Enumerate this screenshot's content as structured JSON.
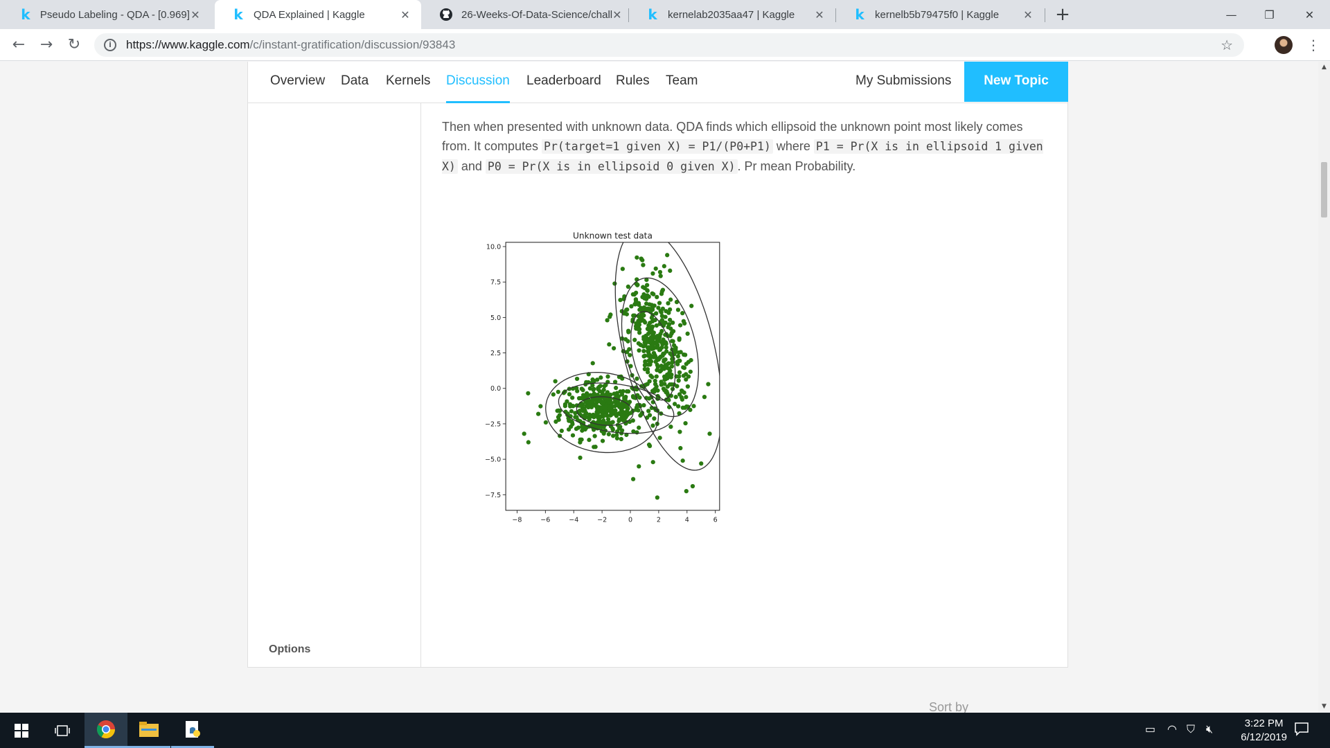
{
  "browser": {
    "tabs": [
      {
        "title": "Pseudo Labeling - QDA - [0.969]",
        "icon": "kaggle-icon"
      },
      {
        "title": "QDA Explained | Kaggle",
        "icon": "kaggle-icon",
        "active": true
      },
      {
        "title": "26-Weeks-Of-Data-Science/chall",
        "icon": "github-icon"
      },
      {
        "title": "kernelab2035aa47 | Kaggle",
        "icon": "kaggle-icon"
      },
      {
        "title": "kernelb5b79475f0 | Kaggle",
        "icon": "kaggle-icon"
      }
    ],
    "url_host": "https://www.kaggle.com",
    "url_path": "/c/instant-gratification/discussion/93843"
  },
  "competition_nav": {
    "tabs": [
      "Overview",
      "Data",
      "Kernels",
      "Discussion",
      "Leaderboard",
      "Rules",
      "Team"
    ],
    "active_tab": "Discussion",
    "my_submissions": "My Submissions",
    "new_topic": "New Topic"
  },
  "post": {
    "text_1": "Then when presented with unknown data. QDA finds which ellipsoid the unknown point most likely comes from. It computes ",
    "code_1": "Pr(target=1 given X) = P1/(P0+P1)",
    "text_2": " where ",
    "code_2": "P1 = Pr(X is in ellipsoid 1 given X)",
    "text_3": " and ",
    "code_3": "P0 = Pr(X is in ellipsoid 0 given X)",
    "text_4": ". Pr mean Probability."
  },
  "sidebar": {
    "options": "Options"
  },
  "footer": {
    "sort_by": "Sort by"
  },
  "chart_data": {
    "type": "scatter",
    "title": "Unknown test data",
    "xlim": [
      -8.8,
      6.3
    ],
    "ylim": [
      -8.6,
      10.3
    ],
    "xticks": [
      -8,
      -6,
      -4,
      -2,
      0,
      2,
      4,
      6
    ],
    "yticks": [
      -7.5,
      -5.0,
      -2.5,
      0.0,
      2.5,
      5.0,
      7.5,
      10.0
    ],
    "point_color": "#2a7a12",
    "clusters": [
      {
        "center": [
          -2.0,
          -1.5
        ],
        "spread": [
          1.5,
          1.0
        ],
        "count": 420
      },
      {
        "center": [
          1.8,
          3.0
        ],
        "spread": [
          1.0,
          2.6
        ],
        "rotation_deg": 15,
        "count": 420
      }
    ],
    "ellipses": [
      {
        "center": [
          -2.0,
          -1.7
        ],
        "radii": [
          4.0,
          2.8
        ],
        "rotation_deg": -8
      },
      {
        "center": [
          -1.0,
          -1.4
        ],
        "radii": [
          4.1,
          1.7
        ],
        "rotation_deg": -8
      },
      {
        "center": [
          -1.8,
          -1.6
        ],
        "radii": [
          2.0,
          1.0
        ],
        "rotation_deg": -5
      },
      {
        "center": [
          2.7,
          2.8
        ],
        "radii": [
          3.2,
          8.8
        ],
        "rotation_deg": 14
      },
      {
        "center": [
          2.1,
          2.9
        ],
        "radii": [
          2.5,
          5.0
        ],
        "rotation_deg": 14
      },
      {
        "center": [
          1.6,
          2.3
        ],
        "radii": [
          1.4,
          3.2
        ],
        "rotation_deg": 14
      }
    ],
    "outliers": [
      [
        -7.5,
        -3.2
      ],
      [
        -7.2,
        -3.8
      ],
      [
        -6.5,
        -1.8
      ],
      [
        -5.3,
        0.5
      ],
      [
        0.2,
        -6.4
      ],
      [
        0.6,
        -5.5
      ],
      [
        1.6,
        -5.2
      ],
      [
        1.9,
        -7.7
      ],
      [
        3.7,
        -5.1
      ],
      [
        4.4,
        -6.9
      ],
      [
        5.0,
        -5.3
      ],
      [
        5.6,
        -3.2
      ],
      [
        5.5,
        0.3
      ],
      [
        2.6,
        9.4
      ],
      [
        2.1,
        8.2
      ],
      [
        2.8,
        8.3
      ],
      [
        0.9,
        8.7
      ],
      [
        -1.4,
        5.2
      ],
      [
        -1.5,
        3.1
      ]
    ]
  },
  "taskbar": {
    "time": "3:22 PM",
    "date": "6/12/2019"
  }
}
